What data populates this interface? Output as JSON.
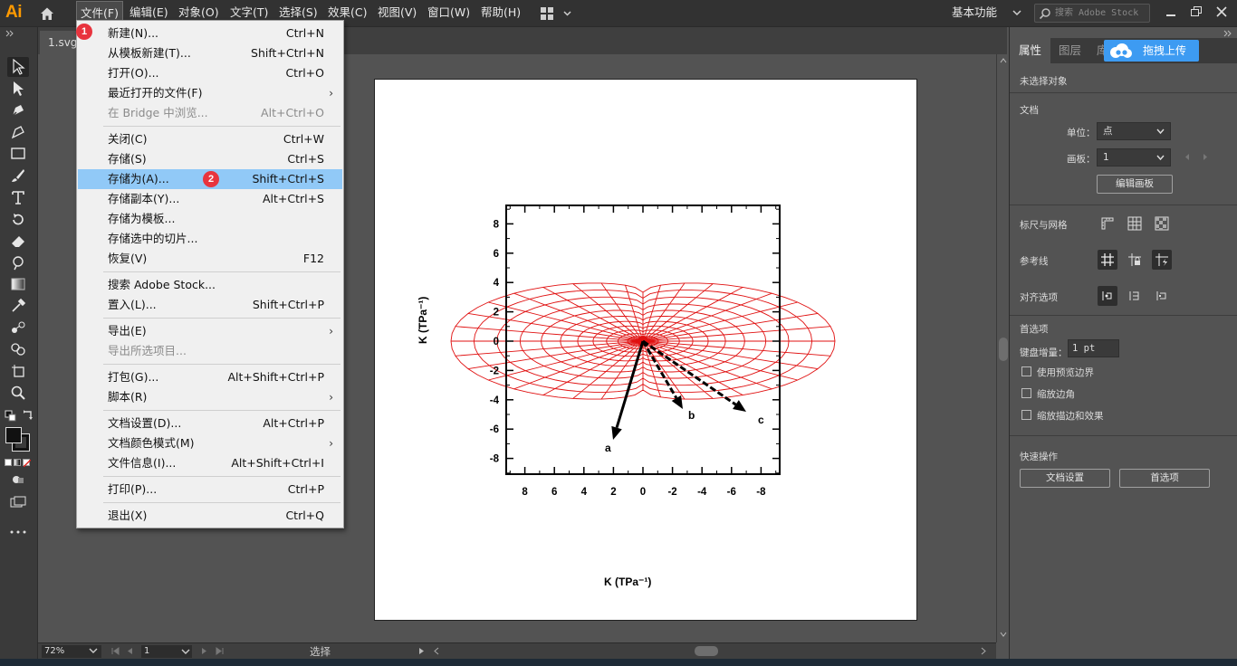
{
  "app": {
    "logo": "Ai",
    "document_tab": "1.svg"
  },
  "menubar": {
    "items": [
      "文件(F)",
      "编辑(E)",
      "对象(O)",
      "文字(T)",
      "选择(S)",
      "效果(C)",
      "视图(V)",
      "窗口(W)",
      "帮助(H)"
    ],
    "workspace": "基本功能",
    "stock_search_placeholder": "搜索 Adobe Stock"
  },
  "file_menu": {
    "groups": [
      [
        {
          "label": "新建(N)...",
          "shortcut": "Ctrl+N"
        },
        {
          "label": "从模板新建(T)...",
          "shortcut": "Shift+Ctrl+N"
        },
        {
          "label": "打开(O)...",
          "shortcut": "Ctrl+O"
        },
        {
          "label": "最近打开的文件(F)",
          "shortcut": "",
          "submenu": true
        },
        {
          "label": "在 Bridge 中浏览...",
          "shortcut": "Alt+Ctrl+O",
          "disabled": true
        }
      ],
      [
        {
          "label": "关闭(C)",
          "shortcut": "Ctrl+W"
        },
        {
          "label": "存储(S)",
          "shortcut": "Ctrl+S"
        },
        {
          "label": "存储为(A)...",
          "shortcut": "Shift+Ctrl+S",
          "highlighted": true
        },
        {
          "label": "存储副本(Y)...",
          "shortcut": "Alt+Ctrl+S"
        },
        {
          "label": "存储为模板...",
          "shortcut": ""
        },
        {
          "label": "存储选中的切片...",
          "shortcut": ""
        },
        {
          "label": "恢复(V)",
          "shortcut": "F12"
        }
      ],
      [
        {
          "label": "搜索 Adobe Stock...",
          "shortcut": ""
        },
        {
          "label": "置入(L)...",
          "shortcut": "Shift+Ctrl+P"
        }
      ],
      [
        {
          "label": "导出(E)",
          "shortcut": "",
          "submenu": true
        },
        {
          "label": "导出所选项目...",
          "shortcut": "",
          "disabled": true
        }
      ],
      [
        {
          "label": "打包(G)...",
          "shortcut": "Alt+Shift+Ctrl+P"
        },
        {
          "label": "脚本(R)",
          "shortcut": "",
          "submenu": true
        }
      ],
      [
        {
          "label": "文档设置(D)...",
          "shortcut": "Alt+Ctrl+P"
        },
        {
          "label": "文档颜色模式(M)",
          "shortcut": "",
          "submenu": true
        },
        {
          "label": "文件信息(I)...",
          "shortcut": "Alt+Shift+Ctrl+I"
        }
      ],
      [
        {
          "label": "打印(P)...",
          "shortcut": "Ctrl+P"
        }
      ],
      [
        {
          "label": "退出(X)",
          "shortcut": "Ctrl+Q"
        }
      ]
    ],
    "badges": [
      "1",
      "2"
    ]
  },
  "panel": {
    "tabs": [
      "属性",
      "图层",
      "库"
    ],
    "cloud_upload": "拖拽上传",
    "no_selection": "未选择对象",
    "document": "文档",
    "units_label": "单位：",
    "units_value": "点",
    "artboard_label": "画板：",
    "artboard_value": "1",
    "edit_artboard": "编辑画板",
    "rulers_grids": "标尺与网格",
    "guides": "参考线",
    "snap_options": "对齐选项",
    "preferences": "首选项",
    "keyboard_increment_label": "键盘增量：",
    "keyboard_increment_value": "1 pt",
    "use_preview_bounds": "使用预览边界",
    "scale_corners": "缩放边角",
    "scale_strokes": "缩放描边和效果",
    "quick_actions": "快速操作",
    "doc_setup_btn": "文档设置",
    "prefs_btn": "首选项"
  },
  "statusbar": {
    "zoom": "72%",
    "page": "1",
    "status": "选择"
  },
  "figure": {
    "ylabel": "K (TPa⁻¹)",
    "xlabel": "K (TPa⁻¹)",
    "y_ticks": [
      "8",
      "6",
      "4",
      "2",
      "0",
      "-2",
      "-4",
      "-6",
      "-8"
    ],
    "x_ticks": [
      "8",
      "6",
      "4",
      "2",
      "0",
      "-2",
      "-4",
      "-6",
      "-8"
    ],
    "arrow_labels": [
      "a",
      "b",
      "c"
    ],
    "colors": {
      "mesh": "#e01010",
      "arrows": "#000000"
    }
  }
}
